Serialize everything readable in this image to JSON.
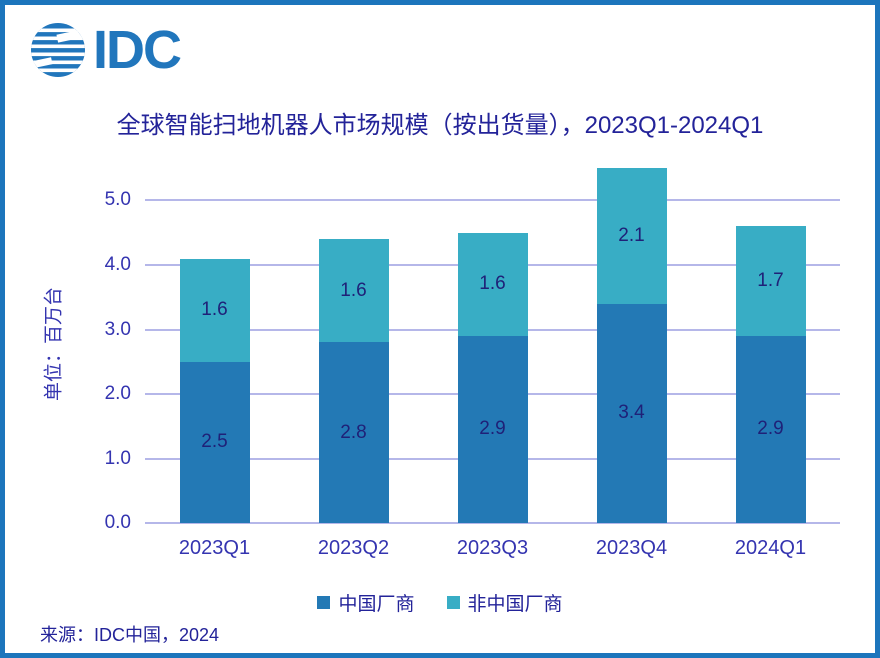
{
  "logo": {
    "text": "IDC",
    "color": "#2176BC"
  },
  "title": "全球智能扫地机器人市场规模（按出货量），2023Q1-2024Q1",
  "source": "来源：IDC中国，2024",
  "colors": {
    "frame": "#1C75BC",
    "gridline": "#B5B7E9",
    "title_text": "#232399",
    "tick_text": "#3434B0",
    "value_label_text": "#1F2178"
  },
  "chart_data": {
    "type": "bar",
    "stacked": true,
    "title": "全球智能扫地机器人市场规模（按出货量），2023Q1-2024Q1",
    "ylabel": "单位：百万台",
    "categories": [
      "2023Q1",
      "2023Q2",
      "2023Q3",
      "2023Q4",
      "2024Q1"
    ],
    "series": [
      {
        "name": "中国厂商",
        "color": "#2379B5",
        "values": [
          2.5,
          2.8,
          2.9,
          3.4,
          2.9
        ]
      },
      {
        "name": "非中国厂商",
        "color": "#38ADC5",
        "values": [
          1.6,
          1.6,
          1.6,
          2.1,
          1.7
        ]
      }
    ],
    "totals": [
      4.1,
      4.4,
      4.5,
      5.5,
      4.6
    ],
    "yticks": [
      0.0,
      1.0,
      2.0,
      3.0,
      4.0,
      5.0
    ],
    "ytick_labels": [
      "0.0",
      "1.0",
      "2.0",
      "3.0",
      "4.0",
      "5.0"
    ],
    "ylim": [
      0,
      5.55
    ],
    "grid": true,
    "value_labels": true,
    "legend_position": "bottom"
  }
}
